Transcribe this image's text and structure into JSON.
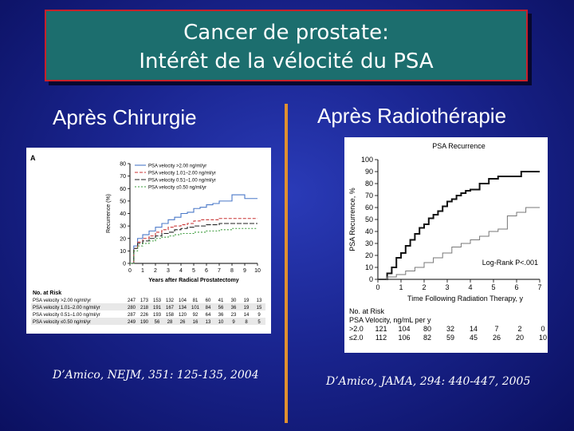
{
  "slide": {
    "title_line1": "Cancer de prostate:",
    "title_line2": "Intérêt de la vélocité du PSA",
    "left_heading": "Après Chirurgie",
    "right_heading": "Après Radiothérapie",
    "left_citation": "D’Amico, NEJM, 351: 125-135, 2004",
    "right_citation": "D’Amico, JAMA, 294: 440-447, 2005",
    "title_bg": "#1c6e6e",
    "title_border": "#c8202a",
    "divider_color": "#e09030"
  },
  "chart_data": [
    {
      "type": "line",
      "panel_label": "A",
      "ylabel": "Recurrence (%)",
      "xlabel": "Years after Radical Prostatectomy",
      "xlim": [
        0,
        10
      ],
      "ylim": [
        0,
        80
      ],
      "x_ticks": [
        0,
        1,
        2,
        3,
        4,
        5,
        6,
        7,
        8,
        9,
        10
      ],
      "y_ticks": [
        0,
        10,
        20,
        30,
        40,
        50,
        60,
        70,
        80
      ],
      "legend_placement": "top-left",
      "series": [
        {
          "name": "PSA velocity >2.00 ng/ml/yr",
          "color": "#4a78c8",
          "dash": "solid",
          "x": [
            0,
            0.3,
            0.6,
            1,
            1.5,
            2,
            2.5,
            3,
            3.5,
            4,
            4.5,
            5,
            5.5,
            6,
            6.5,
            7,
            7.5,
            8,
            8.5,
            9,
            9.5,
            10
          ],
          "y": [
            0,
            14,
            20,
            23,
            26,
            29,
            32,
            35,
            37,
            40,
            41,
            44,
            45,
            47,
            48,
            50,
            50,
            55,
            55,
            52,
            52,
            52
          ]
        },
        {
          "name": "PSA velocity 1.01–2.00 ng/ml/yr",
          "color": "#c83030",
          "dash": "4,2",
          "x": [
            0,
            0.3,
            0.6,
            1,
            1.5,
            2,
            2.5,
            3,
            3.5,
            4,
            4.5,
            5,
            5.5,
            6,
            7,
            8,
            9,
            10
          ],
          "y": [
            0,
            12,
            17,
            20,
            22,
            25,
            27,
            29,
            30,
            31,
            32,
            34,
            35,
            35,
            36,
            36,
            36,
            36
          ]
        },
        {
          "name": "PSA velocity 0.51–1.00 ng/ml/yr",
          "color": "#222222",
          "dash": "6,2",
          "x": [
            0,
            0.3,
            0.6,
            1,
            1.5,
            2,
            2.5,
            3,
            3.5,
            4,
            4.5,
            5,
            6,
            7,
            8,
            9,
            10
          ],
          "y": [
            0,
            12,
            16,
            18,
            20,
            22,
            24,
            25,
            27,
            28,
            29,
            30,
            31,
            32,
            32,
            32,
            32
          ]
        },
        {
          "name": "PSA velocity ≤0.50 ng/ml/yr",
          "color": "#3a9a3a",
          "dash": "2,2",
          "x": [
            0,
            0.3,
            0.6,
            1,
            1.5,
            2,
            2.5,
            3,
            3.5,
            4,
            5,
            6,
            7,
            8,
            9,
            10
          ],
          "y": [
            0,
            10,
            14,
            16,
            18,
            20,
            21,
            22,
            23,
            24,
            25,
            26,
            27,
            28,
            28,
            28
          ]
        }
      ],
      "risk_table": {
        "header": "No. at Risk",
        "rows": [
          {
            "label": "PSA velocity >2.00 ng/ml/yr",
            "values": [
              "247",
              "173",
              "153",
              "132",
              "104",
              "81",
              "60",
              "41",
              "30",
              "19",
              "13"
            ]
          },
          {
            "label": "PSA velocity 1.01–2.00 ng/ml/yr",
            "values": [
              "280",
              "218",
              "191",
              "167",
              "134",
              "101",
              "84",
              "56",
              "36",
              "19",
              "15"
            ]
          },
          {
            "label": "PSA velocity 0.51–1.00 ng/ml/yr",
            "values": [
              "287",
              "226",
              "193",
              "158",
              "120",
              "92",
              "64",
              "36",
              "23",
              "14",
              "9"
            ]
          },
          {
            "label": "PSA velocity ≤0.50 ng/ml/yr",
            "values": [
              "249",
              "190",
              "56",
              "28",
              "26",
              "16",
              "13",
              "10",
              "9",
              "8",
              "5"
            ]
          }
        ]
      }
    },
    {
      "type": "line",
      "title": "PSA Recurrence",
      "ylabel": "PSA Recurrence, %",
      "xlabel": "Time Following Radiation Therapy, y",
      "xlim": [
        0,
        7
      ],
      "ylim": [
        0,
        100
      ],
      "x_ticks": [
        0,
        1,
        2,
        3,
        4,
        5,
        6,
        7
      ],
      "y_ticks": [
        0,
        10,
        20,
        30,
        40,
        50,
        60,
        70,
        80,
        90,
        100
      ],
      "annotation": "Log-Rank P<.001",
      "series": [
        {
          "name": ">2.0",
          "color": "#111111",
          "width": 2,
          "x": [
            0,
            0.4,
            0.6,
            0.8,
            1.0,
            1.2,
            1.4,
            1.6,
            1.8,
            2.0,
            2.2,
            2.4,
            2.6,
            2.8,
            3.0,
            3.2,
            3.4,
            3.6,
            3.8,
            4.0,
            4.4,
            4.8,
            5.2,
            5.6,
            6.2,
            7.0
          ],
          "y": [
            0,
            5,
            10,
            18,
            22,
            28,
            33,
            38,
            43,
            46,
            51,
            54,
            57,
            61,
            65,
            67,
            70,
            72,
            74,
            75,
            80,
            84,
            86,
            86,
            90,
            90
          ]
        },
        {
          "name": "≤2.0",
          "color": "#777777",
          "width": 1,
          "x": [
            0,
            0.4,
            0.8,
            1.2,
            1.6,
            2.0,
            2.4,
            2.8,
            3.2,
            3.6,
            4.0,
            4.4,
            4.8,
            5.2,
            5.6,
            6.0,
            6.4,
            7.0
          ],
          "y": [
            0,
            2,
            4,
            7,
            10,
            14,
            18,
            22,
            27,
            30,
            33,
            36,
            40,
            42,
            53,
            56,
            60,
            60
          ]
        }
      ],
      "risk_table": {
        "header": "No. at Risk",
        "subheader": "PSA Velocity, ng/mL per y",
        "rows": [
          {
            "label": ">2.0",
            "values": [
              "121",
              "104",
              "80",
              "32",
              "14",
              "7",
              "2",
              "0"
            ]
          },
          {
            "label": "≤2.0",
            "values": [
              "112",
              "106",
              "82",
              "59",
              "45",
              "26",
              "20",
              "10"
            ]
          }
        ]
      }
    }
  ]
}
